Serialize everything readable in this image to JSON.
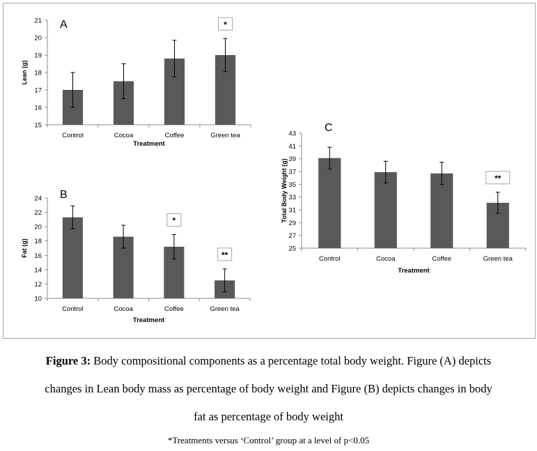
{
  "chart_data": [
    {
      "id": "A",
      "type": "bar",
      "panel_label": "A",
      "categories": [
        "Control",
        "Cocoa",
        "Coffee",
        "Green tea"
      ],
      "values": [
        17,
        17.5,
        18.8,
        19
      ],
      "errors": [
        1.0,
        1.0,
        1.05,
        0.95
      ],
      "significance": [
        "",
        "",
        "",
        "*"
      ],
      "xlabel": "Treatment",
      "ylabel": "Lean (g)",
      "ylim": [
        15,
        21
      ],
      "yticks": [
        15,
        16,
        17,
        18,
        19,
        20,
        21
      ],
      "bar_color": "#595959"
    },
    {
      "id": "B",
      "type": "bar",
      "panel_label": "B",
      "categories": [
        "Control",
        "Cocoa",
        "Coffee",
        "Green tea"
      ],
      "values": [
        21.3,
        18.6,
        17.2,
        12.5
      ],
      "errors": [
        1.6,
        1.6,
        1.7,
        1.6
      ],
      "significance": [
        "",
        "",
        "*",
        "**"
      ],
      "xlabel": "Treatment",
      "ylabel": "Fat (g)",
      "ylim": [
        10,
        24
      ],
      "yticks": [
        10,
        12,
        14,
        16,
        18,
        20,
        22,
        24
      ],
      "bar_color": "#595959"
    },
    {
      "id": "C",
      "type": "bar",
      "panel_label": "C",
      "categories": [
        "Control",
        "Cocoa",
        "Coffee",
        "Green tea"
      ],
      "values": [
        39.1,
        36.9,
        36.7,
        32.1
      ],
      "errors": [
        1.7,
        1.7,
        1.75,
        1.65
      ],
      "significance": [
        "",
        "",
        "",
        "**"
      ],
      "xlabel": "Treatment",
      "ylabel": "Total Body Weight (g)",
      "ylim": [
        25,
        43
      ],
      "yticks": [
        25,
        27,
        29,
        31,
        33,
        35,
        37,
        39,
        41,
        43
      ],
      "bar_color": "#595959"
    }
  ],
  "caption": {
    "label": "Figure 3:",
    "line1": " Body compositional components as a percentage total body weight. Figure (A) depicts",
    "line2": "changes in Lean body mass as percentage of body weight and Figure (B) depicts changes in body",
    "line3": "fat as percentage of body weight"
  },
  "footnote": "*Treatments versus ‘Control’ group at a level of p<0.05"
}
